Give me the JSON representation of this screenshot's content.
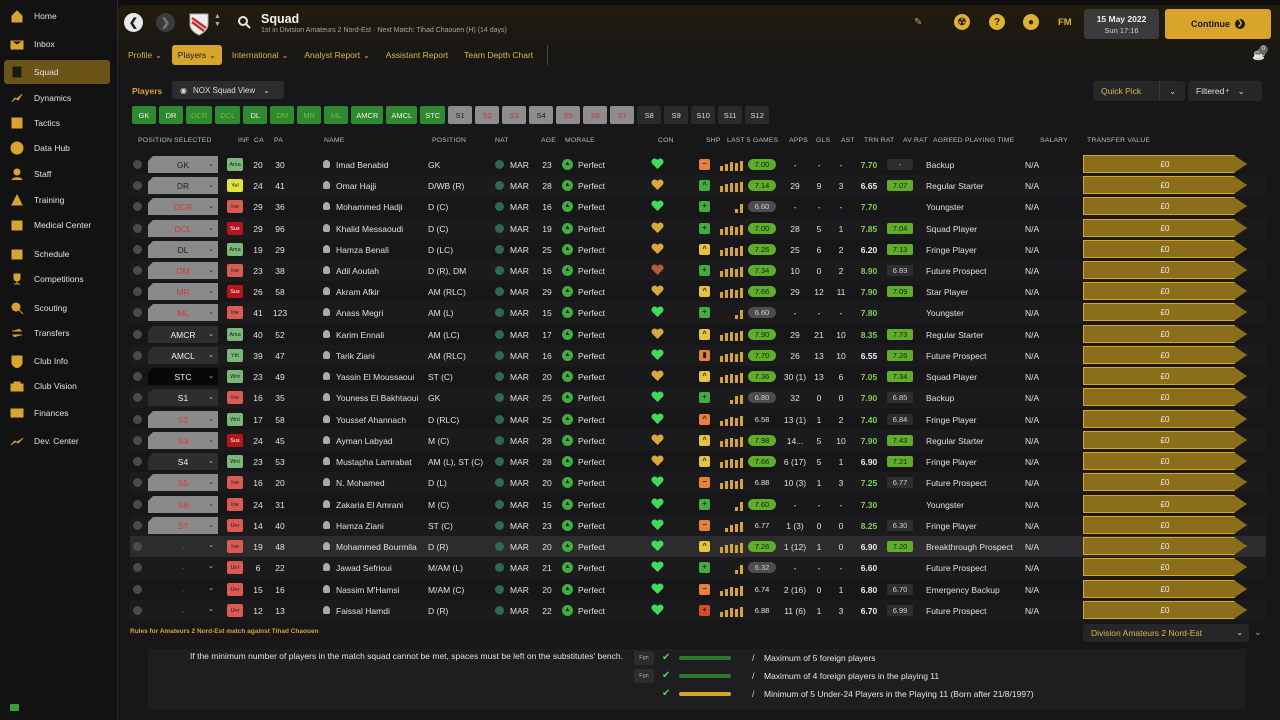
{
  "sidebar": {
    "items": [
      {
        "label": "Home",
        "icon": "home-icon"
      },
      {
        "label": "Inbox",
        "icon": "inbox-icon"
      },
      {
        "label": "Squad",
        "icon": "squad-icon",
        "active": true
      },
      {
        "label": "Dynamics",
        "icon": "dynamics-icon"
      },
      {
        "label": "Tactics",
        "icon": "tactics-icon"
      },
      {
        "label": "Data Hub",
        "icon": "data-hub-icon"
      },
      {
        "label": "Staff",
        "icon": "staff-icon"
      },
      {
        "label": "Training",
        "icon": "training-icon"
      },
      {
        "label": "Medical Center",
        "icon": "medical-icon"
      },
      {
        "label": "Schedule",
        "icon": "schedule-icon"
      },
      {
        "label": "Competitions",
        "icon": "trophy-icon"
      },
      {
        "label": "Scouting",
        "icon": "scouting-icon"
      },
      {
        "label": "Transfers",
        "icon": "transfers-icon"
      },
      {
        "label": "Club Info",
        "icon": "club-info-icon"
      },
      {
        "label": "Club Vision",
        "icon": "club-vision-icon"
      },
      {
        "label": "Finances",
        "icon": "finances-icon"
      },
      {
        "label": "Dev. Center",
        "icon": "dev-center-icon"
      }
    ]
  },
  "header": {
    "title": "Squad",
    "subtitle": "1st in Division Amateurs 2 Nord-Est · Next Match: Tihad Chaouen (H) (14 days)",
    "date": "15 May 2022",
    "time": "Sun 17:16",
    "continue_label": "Continue",
    "fm_label": "FM",
    "news_count": "0"
  },
  "subnav": [
    {
      "label": "Profile",
      "dd": true
    },
    {
      "label": "Players",
      "dd": true,
      "active": true
    },
    {
      "label": "International",
      "dd": true
    },
    {
      "label": "Analyst Report",
      "dd": true
    },
    {
      "label": "Assistant Report",
      "dd": false
    },
    {
      "label": "Team Depth Chart",
      "dd": false
    }
  ],
  "toolbar": {
    "players_label": "Players",
    "view_label": "NOX Squad View",
    "quick_pick": "Quick Pick",
    "filtered": "Filtered"
  },
  "chips": [
    {
      "label": "GK",
      "style": "g1"
    },
    {
      "label": "DR",
      "style": "g1"
    },
    {
      "label": "DCR",
      "style": "g2"
    },
    {
      "label": "DCL",
      "style": "g2"
    },
    {
      "label": "DL",
      "style": "g1"
    },
    {
      "label": "DM",
      "style": "g2"
    },
    {
      "label": "MR",
      "style": "g2"
    },
    {
      "label": "ML",
      "style": "g2"
    },
    {
      "label": "AMCR",
      "style": "g1"
    },
    {
      "label": "AMCL",
      "style": "g1"
    },
    {
      "label": "STC",
      "style": "g1"
    },
    {
      "label": "S1",
      "style": "sub"
    },
    {
      "label": "S2",
      "style": "subr"
    },
    {
      "label": "S3",
      "style": "subr"
    },
    {
      "label": "S4",
      "style": "sub"
    },
    {
      "label": "S5",
      "style": "subr"
    },
    {
      "label": "S6",
      "style": "subr"
    },
    {
      "label": "S7",
      "style": "subr"
    },
    {
      "label": "S8",
      "style": "empty"
    },
    {
      "label": "S9",
      "style": "empty"
    },
    {
      "label": "S10",
      "style": "empty"
    },
    {
      "label": "S11",
      "style": "empty"
    },
    {
      "label": "S12",
      "style": "empty"
    }
  ],
  "columns": {
    "pos_selected": "POSITION SELECTED",
    "inf": "INF",
    "ca": "CA",
    "pa": "PA",
    "name": "NAME",
    "position": "POSITION",
    "nat": "NAT",
    "age": "AGE",
    "morale": "MORALE",
    "con": "CON",
    "shp": "SHP",
    "last5": "LAST 5 GAMES",
    "apps": "APPS",
    "gls": "GLS",
    "ast": "AST",
    "trn": "TRN RAT",
    "avr": "AV RAT",
    "apt": "AGREED PLAYING TIME",
    "salary": "SALARY",
    "tv": "TRANSFER VALUE"
  },
  "players": [
    {
      "sel": "GK",
      "selStyle": "",
      "inf": "Ama",
      "infStyle": "ama",
      "ca": "20",
      "pa": "30",
      "name": "Imad Benabid",
      "pos": "GK",
      "nat": "MAR",
      "age": "23",
      "morale": "Perfect",
      "heart": "#3fdc5a",
      "shp": "−",
      "shpStyle": "o",
      "bars": [
        5,
        7,
        9,
        8,
        10
      ],
      "rat": "7.00",
      "ratStyle": "hi",
      "apps": "-",
      "gls": "-",
      "ast": "-",
      "trn": "7.70",
      "trnStyle": "g",
      "avr": "-",
      "avrStyle": "lo",
      "apt": "Backup",
      "sal": "N/A",
      "tv": "£0"
    },
    {
      "sel": "DR",
      "selStyle": "",
      "inf": "Yel",
      "infStyle": "yel",
      "ca": "24",
      "pa": "41",
      "name": "Omar Hajji",
      "pos": "D/WB (R)",
      "nat": "MAR",
      "age": "28",
      "morale": "Perfect",
      "heart": "#d9a83a",
      "shp": "^",
      "shpStyle": "g",
      "bars": [
        6,
        8,
        9,
        9,
        10
      ],
      "rat": "7.14",
      "ratStyle": "hi",
      "apps": "29",
      "gls": "9",
      "ast": "3",
      "trn": "6.65",
      "trnStyle": "w",
      "avr": "7.07",
      "avrStyle": "hi",
      "apt": "Regular Starter",
      "sal": "N/A",
      "tv": "£0"
    },
    {
      "sel": "DCR",
      "selStyle": "red",
      "inf": "Ine",
      "infStyle": "ine",
      "ca": "29",
      "pa": "36",
      "name": "Mohammed Hadji",
      "pos": "D (C)",
      "nat": "MAR",
      "age": "16",
      "morale": "Perfect",
      "heart": "#3fdc5a",
      "shp": "+",
      "shpStyle": "g",
      "bars": [
        0,
        0,
        0,
        4,
        9
      ],
      "rat": "6.60",
      "ratStyle": "lo",
      "apps": "-",
      "gls": "-",
      "ast": "-",
      "trn": "7.70",
      "trnStyle": "g",
      "avr": "",
      "avrStyle": "none",
      "apt": "Youngster",
      "sal": "N/A",
      "tv": "£0"
    },
    {
      "sel": "DCL",
      "selStyle": "red",
      "inf": "Sus",
      "infStyle": "sus",
      "ca": "29",
      "pa": "96",
      "name": "Khalid Messaoudi",
      "pos": "D (C)",
      "nat": "MAR",
      "age": "19",
      "morale": "Perfect",
      "heart": "#d9a83a",
      "shp": "+",
      "shpStyle": "g",
      "bars": [
        6,
        8,
        9,
        8,
        10
      ],
      "rat": "7.00",
      "ratStyle": "hi",
      "apps": "28",
      "gls": "5",
      "ast": "1",
      "trn": "7.85",
      "trnStyle": "g",
      "avr": "7.04",
      "avrStyle": "hi",
      "apt": "Squad Player",
      "sal": "N/A",
      "tv": "£0"
    },
    {
      "sel": "DL",
      "selStyle": "",
      "inf": "Ama",
      "infStyle": "ama",
      "ca": "19",
      "pa": "29",
      "name": "Hamza Benali",
      "pos": "D (LC)",
      "nat": "MAR",
      "age": "25",
      "morale": "Perfect",
      "heart": "#d9a83a",
      "shp": "^",
      "shpStyle": "y",
      "bars": [
        6,
        8,
        9,
        8,
        10
      ],
      "rat": "7.26",
      "ratStyle": "hi",
      "apps": "25",
      "gls": "6",
      "ast": "2",
      "trn": "6.20",
      "trnStyle": "w",
      "avr": "7.13",
      "avrStyle": "hi",
      "apt": "Fringe Player",
      "sal": "N/A",
      "tv": "£0"
    },
    {
      "sel": "DM",
      "selStyle": "red",
      "inf": "Ine",
      "infStyle": "ine",
      "ca": "23",
      "pa": "38",
      "name": "Adil Aoutah",
      "pos": "D (R), DM",
      "nat": "MAR",
      "age": "16",
      "morale": "Perfect",
      "heart": "#b55a3a",
      "shp": "+",
      "shpStyle": "g",
      "bars": [
        6,
        8,
        9,
        8,
        10
      ],
      "rat": "7.34",
      "ratStyle": "hi",
      "apps": "10",
      "gls": "0",
      "ast": "2",
      "trn": "8.90",
      "trnStyle": "g",
      "avr": "6.83",
      "avrStyle": "lo",
      "apt": "Future Prospect",
      "sal": "N/A",
      "tv": "£0"
    },
    {
      "sel": "MR",
      "selStyle": "red",
      "inf": "Sus",
      "infStyle": "sus",
      "ca": "26",
      "pa": "58",
      "name": "Akram Afkir",
      "pos": "AM (RLC)",
      "nat": "MAR",
      "age": "29",
      "morale": "Perfect",
      "heart": "#d9a83a",
      "shp": "^",
      "shpStyle": "y",
      "bars": [
        6,
        8,
        9,
        8,
        10
      ],
      "rat": "7.66",
      "ratStyle": "hi",
      "apps": "29",
      "gls": "12",
      "ast": "11",
      "trn": "7.90",
      "trnStyle": "g",
      "avr": "7.09",
      "avrStyle": "hi",
      "apt": "Star Player",
      "sal": "N/A",
      "tv": "£0"
    },
    {
      "sel": "ML",
      "selStyle": "red",
      "inf": "Ine",
      "infStyle": "ine",
      "ca": "41",
      "pa": "123",
      "name": "Anass Megri",
      "pos": "AM (L)",
      "nat": "MAR",
      "age": "15",
      "morale": "Perfect",
      "heart": "#3fdc5a",
      "shp": "+",
      "shpStyle": "g",
      "bars": [
        0,
        0,
        0,
        4,
        9
      ],
      "rat": "6.60",
      "ratStyle": "lo",
      "apps": "-",
      "gls": "-",
      "ast": "-",
      "trn": "7.80",
      "trnStyle": "g",
      "avr": "",
      "avrStyle": "none",
      "apt": "Youngster",
      "sal": "N/A",
      "tv": "£0"
    },
    {
      "sel": "AMCR",
      "selStyle": "dark",
      "inf": "Ama",
      "infStyle": "ama",
      "ca": "40",
      "pa": "52",
      "name": "Karim Ennali",
      "pos": "AM (LC)",
      "nat": "MAR",
      "age": "17",
      "morale": "Perfect",
      "heart": "#d9a83a",
      "shp": "^",
      "shpStyle": "y",
      "bars": [
        6,
        8,
        9,
        8,
        10
      ],
      "rat": "7.90",
      "ratStyle": "hi",
      "apps": "29",
      "gls": "21",
      "ast": "10",
      "trn": "8.35",
      "trnStyle": "g",
      "avr": "7.73",
      "avrStyle": "hi",
      "apt": "Regular Starter",
      "sal": "N/A",
      "tv": "£0"
    },
    {
      "sel": "AMCL",
      "selStyle": "dark",
      "inf": "Yth",
      "infStyle": "yth",
      "ca": "39",
      "pa": "47",
      "name": "Tarik Ziani",
      "pos": "AM (RLC)",
      "nat": "MAR",
      "age": "16",
      "morale": "Perfect",
      "heart": "#3fdc5a",
      "shp": "▮",
      "shpStyle": "o",
      "bars": [
        6,
        8,
        9,
        8,
        10
      ],
      "rat": "7.70",
      "ratStyle": "hi",
      "apps": "26",
      "gls": "13",
      "ast": "10",
      "trn": "6.55",
      "trnStyle": "w",
      "avr": "7.26",
      "avrStyle": "hi",
      "apt": "Future Prospect",
      "sal": "N/A",
      "tv": "£0"
    },
    {
      "sel": "STC",
      "selStyle": "black",
      "inf": "Wnt",
      "infStyle": "wnt",
      "ca": "23",
      "pa": "49",
      "name": "Yassin El Moussaoui",
      "pos": "ST (C)",
      "nat": "MAR",
      "age": "20",
      "morale": "Perfect",
      "heart": "#d9a83a",
      "shp": "^",
      "shpStyle": "y",
      "bars": [
        6,
        8,
        9,
        8,
        10
      ],
      "rat": "7.36",
      "ratStyle": "hi",
      "apps": "30 (1)",
      "gls": "13",
      "ast": "6",
      "trn": "7.05",
      "trnStyle": "g",
      "avr": "7.34",
      "avrStyle": "hi",
      "apt": "Squad Player",
      "sal": "N/A",
      "tv": "£0"
    },
    {
      "sel": "S1",
      "selStyle": "dark",
      "inf": "Ine",
      "infStyle": "ine",
      "ca": "16",
      "pa": "35",
      "name": "Youness El Bakhtaoui",
      "pos": "GK",
      "nat": "MAR",
      "age": "25",
      "morale": "Perfect",
      "heart": "#3fdc5a",
      "shp": "+",
      "shpStyle": "g",
      "bars": [
        0,
        0,
        4,
        8,
        9
      ],
      "rat": "6.80",
      "ratStyle": "lo",
      "apps": "32",
      "gls": "0",
      "ast": "0",
      "trn": "7.90",
      "trnStyle": "g",
      "avr": "6.85",
      "avrStyle": "lo",
      "apt": "Backup",
      "sal": "N/A",
      "tv": "£0"
    },
    {
      "sel": "S2",
      "selStyle": "red",
      "inf": "Wnt",
      "infStyle": "wnt",
      "ca": "17",
      "pa": "58",
      "name": "Youssef Ahannach",
      "pos": "D (RLC)",
      "nat": "MAR",
      "age": "25",
      "morale": "Perfect",
      "heart": "#3fdc5a",
      "shp": "^",
      "shpStyle": "o",
      "bars": [
        5,
        7,
        9,
        8,
        10
      ],
      "rat": "6.58",
      "ratStyle": "none",
      "apps": "13 (1)",
      "gls": "1",
      "ast": "2",
      "trn": "7.40",
      "trnStyle": "g",
      "avr": "6.84",
      "avrStyle": "lo",
      "apt": "Fringe Player",
      "sal": "N/A",
      "tv": "£0"
    },
    {
      "sel": "S3",
      "selStyle": "red",
      "inf": "Sus",
      "infStyle": "sus",
      "ca": "24",
      "pa": "45",
      "name": "Ayman Labyad",
      "pos": "M (C)",
      "nat": "MAR",
      "age": "28",
      "morale": "Perfect",
      "heart": "#d9a83a",
      "shp": "^",
      "shpStyle": "y",
      "bars": [
        6,
        8,
        9,
        8,
        10
      ],
      "rat": "7.98",
      "ratStyle": "hi",
      "apps": "14...",
      "gls": "5",
      "ast": "10",
      "trn": "7.90",
      "trnStyle": "g",
      "avr": "7.43",
      "avrStyle": "hi",
      "apt": "Regular Starter",
      "sal": "N/A",
      "tv": "£0"
    },
    {
      "sel": "S4",
      "selStyle": "dark",
      "inf": "Wnt",
      "infStyle": "wnt",
      "ca": "23",
      "pa": "53",
      "name": "Mustapha Lamrabat",
      "pos": "AM (L), ST (C)",
      "nat": "MAR",
      "age": "28",
      "morale": "Perfect",
      "heart": "#d9a83a",
      "shp": "^",
      "shpStyle": "y",
      "bars": [
        6,
        8,
        9,
        8,
        10
      ],
      "rat": "7.66",
      "ratStyle": "hi",
      "apps": "6 (17)",
      "gls": "5",
      "ast": "1",
      "trn": "6.90",
      "trnStyle": "w",
      "avr": "7.21",
      "avrStyle": "hi",
      "apt": "Fringe Player",
      "sal": "N/A",
      "tv": "£0"
    },
    {
      "sel": "S5",
      "selStyle": "red",
      "inf": "Ine",
      "infStyle": "ine",
      "ca": "16",
      "pa": "20",
      "name": "N. Mohamed",
      "pos": "D (L)",
      "nat": "MAR",
      "age": "20",
      "morale": "Perfect",
      "heart": "#3fdc5a",
      "shp": "−",
      "shpStyle": "o",
      "bars": [
        6,
        8,
        9,
        8,
        10
      ],
      "rat": "6.88",
      "ratStyle": "none",
      "apps": "10 (3)",
      "gls": "1",
      "ast": "3",
      "trn": "7.25",
      "trnStyle": "g",
      "avr": "6.77",
      "avrStyle": "lo",
      "apt": "Future Prospect",
      "sal": "N/A",
      "tv": "£0"
    },
    {
      "sel": "S6",
      "selStyle": "red",
      "inf": "Ine",
      "infStyle": "ine",
      "ca": "24",
      "pa": "31",
      "name": "Zakaria El Amrani",
      "pos": "M (C)",
      "nat": "MAR",
      "age": "15",
      "morale": "Perfect",
      "heart": "#3fdc5a",
      "shp": "+",
      "shpStyle": "g",
      "bars": [
        0,
        0,
        0,
        4,
        9
      ],
      "rat": "7.60",
      "ratStyle": "hi",
      "apps": "-",
      "gls": "-",
      "ast": "-",
      "trn": "7.30",
      "trnStyle": "g",
      "avr": "",
      "avrStyle": "none",
      "apt": "Youngster",
      "sal": "N/A",
      "tv": "£0"
    },
    {
      "sel": "S7",
      "selStyle": "red",
      "inf": "Unr",
      "infStyle": "unr",
      "ca": "14",
      "pa": "40",
      "name": "Hamza Ziani",
      "pos": "ST (C)",
      "nat": "MAR",
      "age": "23",
      "morale": "Perfect",
      "heart": "#3fdc5a",
      "shp": "−",
      "shpStyle": "o",
      "bars": [
        0,
        4,
        7,
        8,
        10
      ],
      "rat": "6.77",
      "ratStyle": "none",
      "apps": "1 (3)",
      "gls": "0",
      "ast": "0",
      "trn": "8.25",
      "trnStyle": "g",
      "avr": "6.30",
      "avrStyle": "lo",
      "apt": "Fringe Player",
      "sal": "N/A",
      "tv": "£0"
    },
    {
      "sel": "-",
      "selStyle": "none",
      "inf": "Ine",
      "infStyle": "ine",
      "ca": "19",
      "pa": "48",
      "name": "Mohammed Bourmila",
      "pos": "D (R)",
      "nat": "MAR",
      "age": "20",
      "morale": "Perfect",
      "heart": "#3fdc5a",
      "shp": "^",
      "shpStyle": "y",
      "bars": [
        6,
        8,
        9,
        8,
        10
      ],
      "rat": "7.26",
      "ratStyle": "hi",
      "apps": "1 (12)",
      "gls": "1",
      "ast": "0",
      "trn": "6.90",
      "trnStyle": "w",
      "avr": "7.20",
      "avrStyle": "hi",
      "apt": "Breakthrough Prospect",
      "sal": "N/A",
      "tv": "£0"
    },
    {
      "sel": "-",
      "selStyle": "none",
      "inf": "Unr",
      "infStyle": "unr",
      "ca": "6",
      "pa": "22",
      "name": "Jawad Sefrioui",
      "pos": "M/AM (L)",
      "nat": "MAR",
      "age": "21",
      "morale": "Perfect",
      "heart": "#3fdc5a",
      "shp": "+",
      "shpStyle": "g",
      "bars": [
        0,
        0,
        0,
        4,
        9
      ],
      "rat": "6.32",
      "ratStyle": "lo",
      "apps": "-",
      "gls": "-",
      "ast": "-",
      "trn": "6.60",
      "trnStyle": "w",
      "avr": "",
      "avrStyle": "none",
      "apt": "Future Prospect",
      "sal": "N/A",
      "tv": "£0"
    },
    {
      "sel": "-",
      "selStyle": "none",
      "inf": "Unr",
      "infStyle": "unr",
      "ca": "15",
      "pa": "16",
      "name": "Nassim M'Hamsi",
      "pos": "M/AM (C)",
      "nat": "MAR",
      "age": "20",
      "morale": "Perfect",
      "heart": "#3fdc5a",
      "shp": "−",
      "shpStyle": "o",
      "bars": [
        5,
        7,
        9,
        8,
        10
      ],
      "rat": "6.74",
      "ratStyle": "none",
      "apps": "2 (16)",
      "gls": "0",
      "ast": "1",
      "trn": "6.80",
      "trnStyle": "w",
      "avr": "6.70",
      "avrStyle": "lo",
      "apt": "Emergency Backup",
      "sal": "N/A",
      "tv": "£0"
    },
    {
      "sel": "-",
      "selStyle": "none",
      "inf": "Unr",
      "infStyle": "unr",
      "ca": "12",
      "pa": "13",
      "name": "Faissal Hamdi",
      "pos": "D (R)",
      "nat": "MAR",
      "age": "22",
      "morale": "Perfect",
      "heart": "#3fdc5a",
      "shp": "+",
      "shpStyle": "r",
      "bars": [
        5,
        7,
        9,
        8,
        10
      ],
      "rat": "6.88",
      "ratStyle": "none",
      "apps": "11 (6)",
      "gls": "1",
      "ast": "3",
      "trn": "6.70",
      "trnStyle": "w",
      "avr": "6.99",
      "avrStyle": "lo",
      "apt": "Future Prospect",
      "sal": "N/A",
      "tv": "£0"
    }
  ],
  "rules": {
    "title": "Rules for Amateurs 2 Nord-Est match against Tihad Chaouen",
    "division": "Division Amateurs 2 Nord-Est",
    "text": "If the minimum number of players in the match squad cannot be met, spaces must be left on the substitutes' bench.",
    "items": [
      {
        "tag": "Fgn",
        "text": "Maximum of 5 foreign players",
        "bar": "g"
      },
      {
        "tag": "Fgn",
        "text": "Maximum of 4 foreign players in the playing 11",
        "bar": "g"
      },
      {
        "tag": "",
        "text": "Minimum of 5 Under-24 Players in the Playing 11 (Born after 21/8/1997)",
        "bar": "y"
      }
    ]
  }
}
